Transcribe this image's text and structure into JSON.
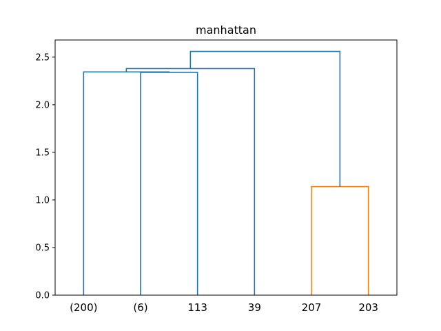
{
  "chart_data": {
    "type": "dendrogram",
    "title": "manhattan",
    "xlabel": "",
    "ylabel": "",
    "ylim": [
      0,
      2.68
    ],
    "y_ticks": [
      0.0,
      0.5,
      1.0,
      1.5,
      2.0,
      2.5
    ],
    "y_tick_labels": [
      "0.0",
      "0.5",
      "1.0",
      "1.5",
      "2.0",
      "2.5"
    ],
    "leaves": [
      "(200)",
      "(6)",
      "113",
      "39",
      "207",
      "203"
    ],
    "colors": {
      "cluster_1": "#1f77b4",
      "cluster_2": "#ff7f0e",
      "axis": "#000000"
    },
    "merges": [
      {
        "id": "m1",
        "left_leaf": 1,
        "right_leaf": 2,
        "height": 2.34,
        "color": "cluster_1"
      },
      {
        "id": "m2",
        "left_leaf": 0,
        "right_node": "m1",
        "height": 2.345,
        "color": "cluster_1"
      },
      {
        "id": "m3",
        "left_node": "m2",
        "right_leaf": 3,
        "height": 2.38,
        "color": "cluster_1"
      },
      {
        "id": "m4",
        "left_leaf": 4,
        "right_leaf": 5,
        "height": 1.14,
        "color": "cluster_2"
      },
      {
        "id": "m5",
        "left_node": "m3",
        "right_node": "m4",
        "height": 2.56,
        "color": "cluster_1"
      }
    ]
  }
}
